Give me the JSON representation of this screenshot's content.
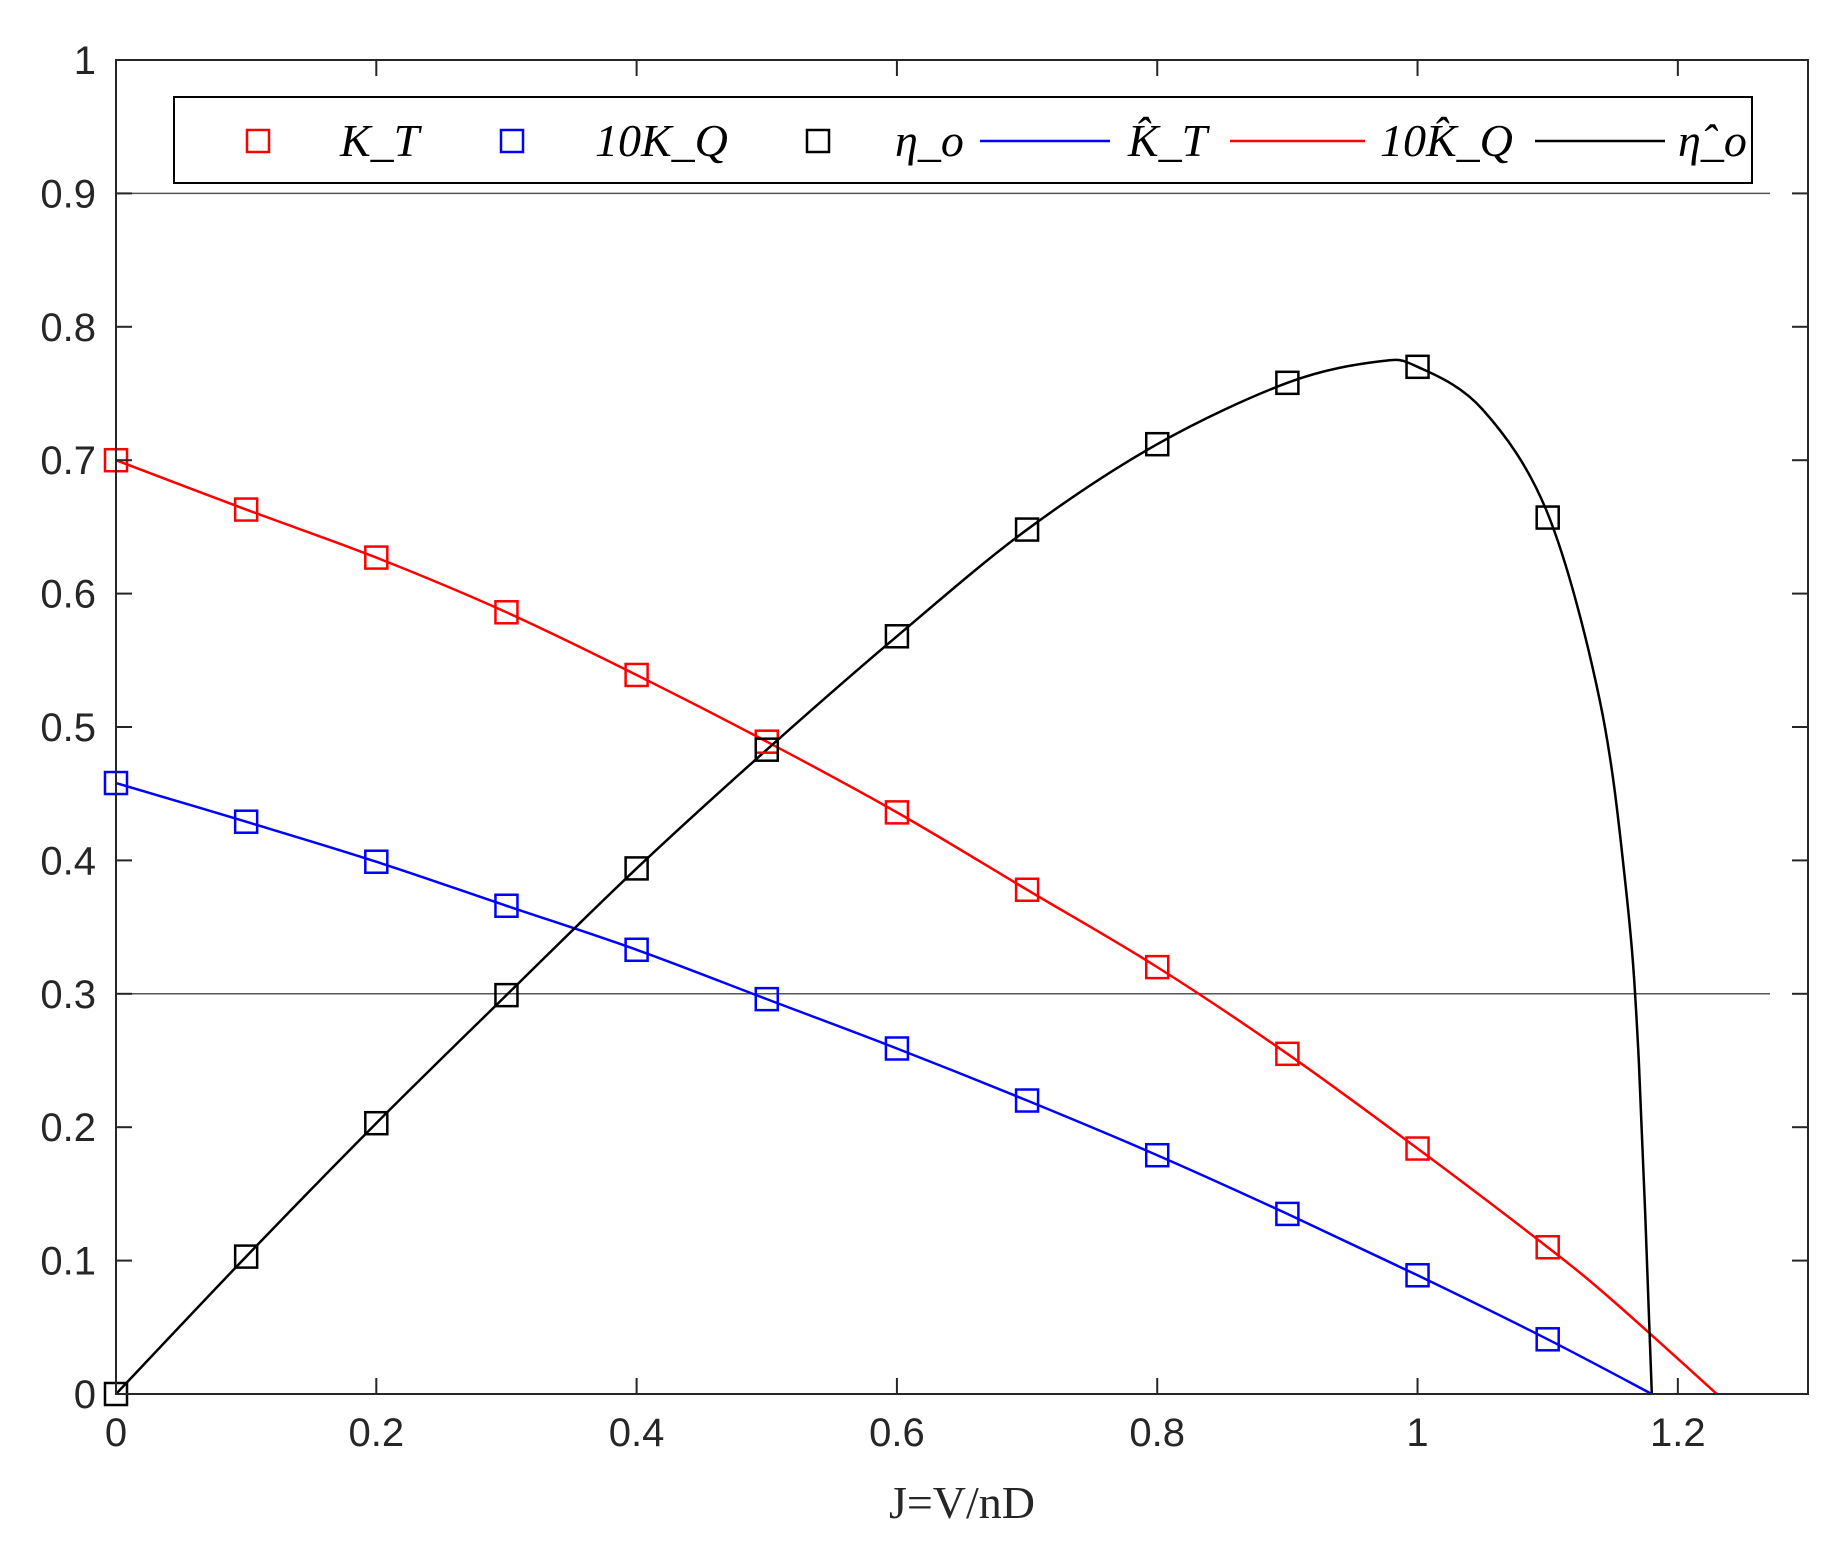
{
  "chart_data": {
    "type": "line",
    "xlabel": "J=V/nD",
    "ylabel": "",
    "xlim": [
      0,
      1.3
    ],
    "ylim": [
      0,
      1
    ],
    "xticks": [
      "0",
      "0.2",
      "0.4",
      "0.6",
      "0.8",
      "1",
      "1.2"
    ],
    "yticks": [
      "0",
      "0.1",
      "0.2",
      "0.3",
      "0.4",
      "0.5",
      "0.6",
      "0.7",
      "0.8",
      "0.9",
      "1"
    ],
    "reference_lines_y": [
      0.3,
      0.9
    ],
    "legend": {
      "placement": "top",
      "entries": [
        "K_T",
        "10K_Q",
        "η_o",
        "K̂_T",
        "10K̂_Q",
        "η̂_o"
      ]
    },
    "series": [
      {
        "name": "K_T",
        "kind": "markers",
        "marker": "square",
        "color": "#ff0000",
        "x": [
          0,
          0.1,
          0.2,
          0.3,
          0.4,
          0.5,
          0.6,
          0.7,
          0.8,
          0.9,
          1.0,
          1.1
        ],
        "y": [
          0.7,
          0.663,
          0.627,
          0.586,
          0.539,
          0.489,
          0.436,
          0.378,
          0.32,
          0.255,
          0.184,
          0.11
        ]
      },
      {
        "name": "10K_Q",
        "kind": "markers",
        "marker": "square",
        "color": "#0000ff",
        "x": [
          0,
          0.1,
          0.2,
          0.3,
          0.4,
          0.5,
          0.6,
          0.7,
          0.8,
          0.9,
          1.0,
          1.1
        ],
        "y": [
          0.458,
          0.429,
          0.399,
          0.366,
          0.333,
          0.296,
          0.259,
          0.22,
          0.179,
          0.135,
          0.089,
          0.041
        ]
      },
      {
        "name": "η_o",
        "kind": "markers",
        "marker": "square",
        "color": "#000000",
        "x": [
          0,
          0.1,
          0.2,
          0.3,
          0.4,
          0.5,
          0.6,
          0.7,
          0.8,
          0.9,
          1.0,
          1.1
        ],
        "y": [
          0,
          0.103,
          0.203,
          0.299,
          0.394,
          0.483,
          0.568,
          0.648,
          0.712,
          0.758,
          0.77,
          0.657
        ]
      },
      {
        "name": "K̂_T",
        "kind": "line",
        "color": "#0000ff",
        "x": [
          0,
          0.1,
          0.2,
          0.3,
          0.4,
          0.5,
          0.6,
          0.7,
          0.8,
          0.9,
          1.0,
          1.1,
          1.18
        ],
        "y": [
          0.458,
          0.429,
          0.399,
          0.366,
          0.333,
          0.296,
          0.259,
          0.22,
          0.179,
          0.135,
          0.089,
          0.041,
          0
        ]
      },
      {
        "name": "10K̂_Q",
        "kind": "line",
        "color": "#ff0000",
        "x": [
          0,
          0.1,
          0.2,
          0.3,
          0.4,
          0.5,
          0.6,
          0.7,
          0.8,
          0.9,
          1.0,
          1.1,
          1.15,
          1.23
        ],
        "y": [
          0.7,
          0.663,
          0.627,
          0.586,
          0.539,
          0.489,
          0.436,
          0.378,
          0.32,
          0.255,
          0.184,
          0.11,
          0.07,
          0
        ]
      },
      {
        "name": "η̂_o",
        "kind": "line",
        "color": "#000000",
        "x": [
          0,
          0.1,
          0.2,
          0.3,
          0.4,
          0.5,
          0.6,
          0.7,
          0.8,
          0.9,
          0.97,
          1.0,
          1.05,
          1.1,
          1.14,
          1.16,
          1.17,
          1.18
        ],
        "y": [
          0,
          0.103,
          0.203,
          0.299,
          0.394,
          0.483,
          0.568,
          0.648,
          0.712,
          0.758,
          0.774,
          0.77,
          0.738,
          0.66,
          0.52,
          0.38,
          0.25,
          0
        ]
      }
    ]
  }
}
